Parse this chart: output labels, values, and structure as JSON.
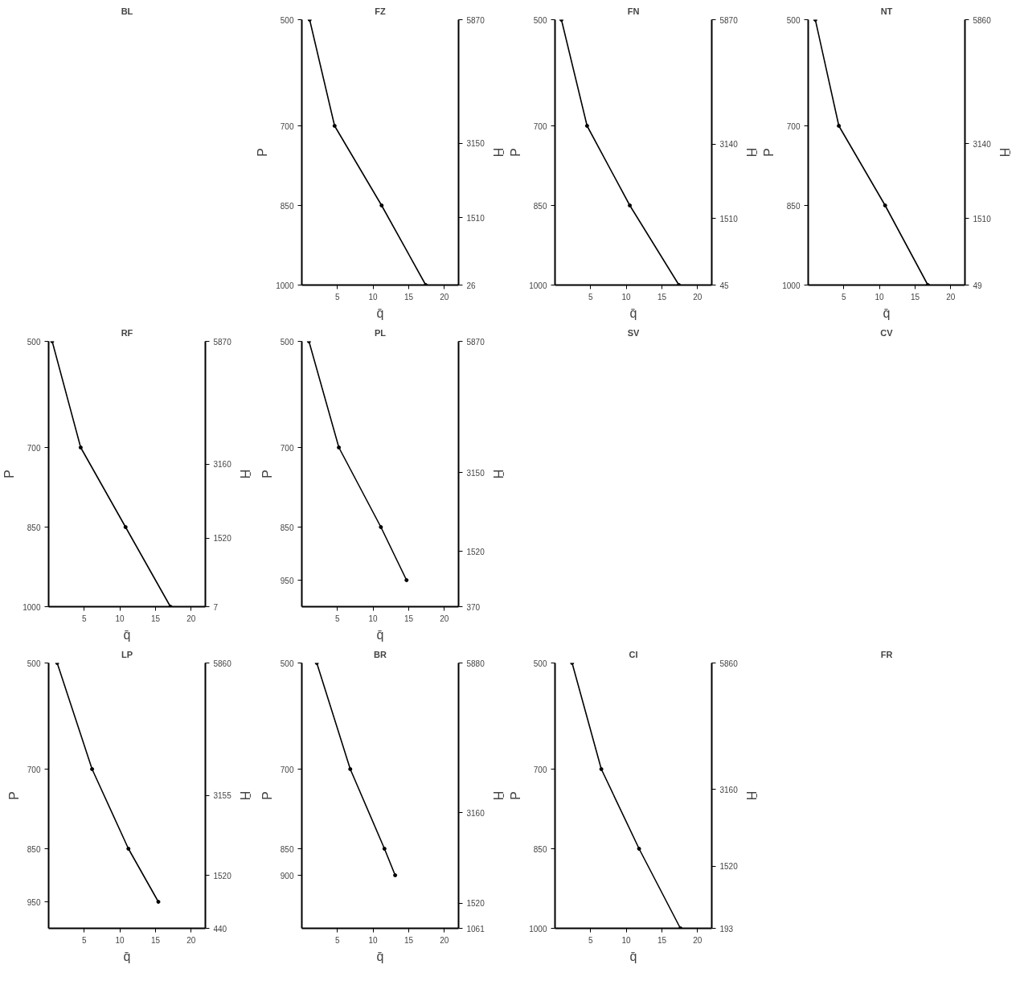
{
  "chart_data": [
    {
      "type": "other",
      "title": "BL"
    },
    {
      "type": "line",
      "title": "FZ",
      "xlabel": "q̄",
      "ylabel": "P",
      "y2label": "H̄",
      "marker": "circle",
      "color": "#000000",
      "x": [
        1.1,
        4.6,
        11.2,
        17.4
      ],
      "values": [
        500,
        700,
        850,
        1000
      ],
      "xlim": [
        0,
        22
      ],
      "xticks": [
        5,
        10,
        15,
        20
      ],
      "ylim": [
        1000,
        500
      ],
      "yticks": [
        500,
        700,
        850,
        1000
      ],
      "y2lim": [
        26,
        5870
      ],
      "y2ticks": [
        5870,
        3150,
        1510,
        26
      ]
    },
    {
      "type": "line",
      "title": "FN",
      "xlabel": "q̄",
      "ylabel": "P",
      "y2label": "H̄",
      "marker": "circle",
      "color": "#000000",
      "x": [
        0.9,
        4.5,
        10.5,
        17.4
      ],
      "values": [
        500,
        700,
        850,
        1000
      ],
      "xlim": [
        0,
        22
      ],
      "xticks": [
        5,
        10,
        15,
        20
      ],
      "ylim": [
        1000,
        500
      ],
      "yticks": [
        500,
        700,
        850,
        1000
      ],
      "y2lim": [
        45,
        5870
      ],
      "y2ticks": [
        5870,
        3140,
        1510,
        45
      ]
    },
    {
      "type": "line",
      "title": "NT",
      "xlabel": "q̄",
      "ylabel": "P",
      "y2label": "H̄",
      "marker": "circle",
      "color": "#000000",
      "x": [
        1.0,
        4.3,
        10.8,
        16.8
      ],
      "values": [
        500,
        700,
        850,
        1000
      ],
      "xlim": [
        0,
        22
      ],
      "xticks": [
        5,
        10,
        15,
        20
      ],
      "ylim": [
        1000,
        500
      ],
      "yticks": [
        500,
        700,
        850,
        1000
      ],
      "y2lim": [
        49,
        5860
      ],
      "y2ticks": [
        5860,
        3140,
        1510,
        49
      ]
    },
    {
      "type": "line",
      "title": "RF",
      "xlabel": "q̄",
      "ylabel": "P",
      "y2label": "H̄",
      "marker": "circle",
      "color": "#000000",
      "x": [
        0.5,
        4.5,
        10.8,
        17.1
      ],
      "values": [
        500,
        700,
        850,
        1000
      ],
      "xlim": [
        0,
        22
      ],
      "xticks": [
        5,
        10,
        15,
        20
      ],
      "ylim": [
        1000,
        500
      ],
      "yticks": [
        500,
        700,
        850,
        1000
      ],
      "y2lim": [
        7,
        5870
      ],
      "y2ticks": [
        5870,
        3160,
        1520,
        7
      ]
    },
    {
      "type": "line",
      "title": "PL",
      "xlabel": "q̄",
      "ylabel": "P",
      "y2label": "H̄",
      "marker": "circle",
      "color": "#000000",
      "x": [
        1.0,
        5.2,
        11.1,
        14.7
      ],
      "values": [
        500,
        700,
        850,
        950
      ],
      "xlim": [
        0,
        22
      ],
      "xticks": [
        5,
        10,
        15,
        20
      ],
      "ylim": [
        1000,
        500
      ],
      "yticks": [
        500,
        700,
        850,
        950
      ],
      "y2lim": [
        370,
        5870
      ],
      "y2ticks": [
        5870,
        3150,
        1520,
        370
      ]
    },
    {
      "type": "other",
      "title": "SV"
    },
    {
      "type": "other",
      "title": "CV"
    },
    {
      "type": "line",
      "title": "LP",
      "xlabel": "q̄",
      "ylabel": "P",
      "y2label": "H̄",
      "marker": "circle",
      "color": "#000000",
      "x": [
        1.2,
        6.1,
        11.2,
        15.4
      ],
      "values": [
        500,
        700,
        850,
        950
      ],
      "xlim": [
        0,
        22
      ],
      "xticks": [
        5,
        10,
        15,
        20
      ],
      "ylim": [
        1000,
        500
      ],
      "yticks": [
        500,
        700,
        850,
        950
      ],
      "y2lim": [
        440,
        5860
      ],
      "y2ticks": [
        5860,
        3155,
        1520,
        440
      ]
    },
    {
      "type": "line",
      "title": "BR",
      "xlabel": "q̄",
      "ylabel": "P",
      "y2label": "H̄",
      "marker": "circle",
      "color": "#000000",
      "x": [
        2.1,
        6.8,
        11.6,
        13.1
      ],
      "values": [
        500,
        700,
        850,
        900
      ],
      "xlim": [
        0,
        22
      ],
      "xticks": [
        5,
        10,
        15,
        20
      ],
      "ylim": [
        1000,
        500
      ],
      "yticks": [
        500,
        700,
        850,
        900
      ],
      "y2lim": [
        1061,
        5880
      ],
      "y2ticks": [
        5880,
        3160,
        1520,
        1061
      ]
    },
    {
      "type": "line",
      "title": "CI",
      "xlabel": "q̄",
      "ylabel": "P",
      "y2label": "H̄",
      "marker": "circle",
      "color": "#000000",
      "x": [
        2.4,
        6.5,
        11.8,
        17.6
      ],
      "values": [
        500,
        700,
        850,
        1000
      ],
      "xlim": [
        0,
        22
      ],
      "xticks": [
        5,
        10,
        15,
        20
      ],
      "ylim": [
        1000,
        500
      ],
      "yticks": [
        500,
        700,
        850,
        1000
      ],
      "y2lim": [
        193,
        5860
      ],
      "y2ticks": [
        5860,
        3160,
        1520,
        193
      ]
    },
    {
      "type": "other",
      "title": "FR"
    }
  ]
}
